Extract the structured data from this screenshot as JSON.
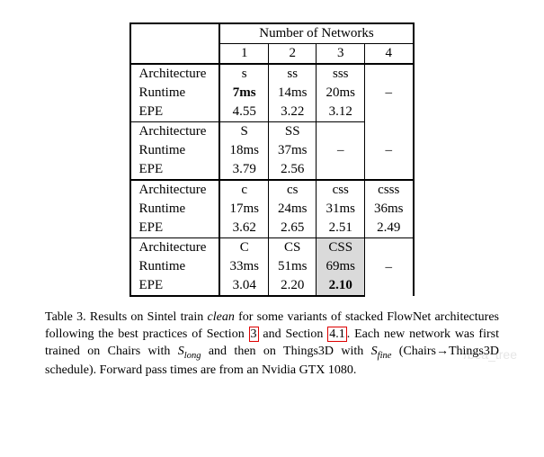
{
  "table": {
    "header_group": "Number of Networks",
    "cols": [
      "1",
      "2",
      "3",
      "4"
    ],
    "row_labels": {
      "arch": "Architecture",
      "runtime": "Runtime",
      "epe": "EPE"
    },
    "block1": {
      "arch": [
        "s",
        "ss",
        "sss",
        "–"
      ],
      "runtime": [
        "7ms",
        "14ms",
        "20ms",
        "–"
      ],
      "epe": [
        "4.55",
        "3.22",
        "3.12",
        ""
      ],
      "runtime_bold_idx": 0
    },
    "block2": {
      "arch": [
        "S",
        "SS",
        "",
        ""
      ],
      "runtime": [
        "18ms",
        "37ms",
        "–",
        "–"
      ],
      "epe": [
        "3.79",
        "2.56",
        "",
        ""
      ]
    },
    "block3": {
      "arch": [
        "c",
        "cs",
        "css",
        "csss"
      ],
      "runtime": [
        "17ms",
        "24ms",
        "31ms",
        "36ms"
      ],
      "epe": [
        "3.62",
        "2.65",
        "2.51",
        "2.49"
      ]
    },
    "block4": {
      "arch": [
        "C",
        "CS",
        "CSS",
        ""
      ],
      "runtime": [
        "33ms",
        "51ms",
        "69ms",
        "–"
      ],
      "epe": [
        "3.04",
        "2.20",
        "2.10",
        ""
      ],
      "epe_bold_idx": 2,
      "highlight_col_idx": 2
    }
  },
  "caption": {
    "lead": "Table 3. Results on Sintel train ",
    "clean": "clean",
    "mid1": " for some variants of stacked FlowNet architectures following the best practices of Section ",
    "ref1": "3",
    "mid2": " and Section ",
    "ref2": "4.1",
    "mid3": ".  Each new network was first trained on Chairs with ",
    "s1a": "S",
    "s1b": "long",
    "mid4": " and then on Things3D with ",
    "s2a": "S",
    "s2b": "fine",
    "mid5": " (Chairs→Things3D schedule).  Forward pass times are from an Nvidia GTX 1080."
  },
  "watermark": "/bea_tree"
}
